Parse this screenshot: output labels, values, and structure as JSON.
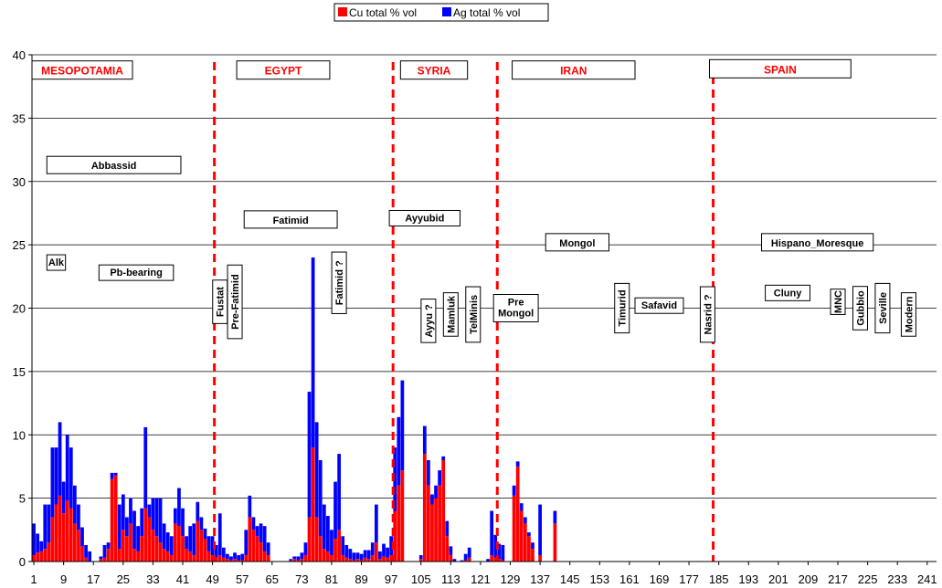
{
  "chart_data": {
    "type": "bar",
    "stacked": true,
    "title": "",
    "xlabel": "",
    "ylabel": "",
    "ylim": [
      0,
      40
    ],
    "yticks": [
      "0",
      "5",
      "10",
      "15",
      "20",
      "25",
      "30",
      "35",
      "40"
    ],
    "x_count": 243,
    "xticks": [
      "1",
      "9",
      "17",
      "25",
      "33",
      "41",
      "49",
      "57",
      "65",
      "73",
      "81",
      "89",
      "97",
      "105",
      "113",
      "121",
      "129",
      "137",
      "145",
      "153",
      "161",
      "169",
      "177",
      "185",
      "193",
      "201",
      "209",
      "217",
      "225",
      "233",
      "241"
    ],
    "grid": "horizontal",
    "legend_position": "top-center",
    "colors": {
      "cu": "#ff0000",
      "ag": "#0000ff",
      "divider": "#ff0000"
    },
    "series": [
      {
        "name": "Cu total % vol",
        "values": [
          0.5,
          0.7,
          0.8,
          1,
          1.5,
          3.5,
          4.5,
          5.2,
          3.8,
          4.8,
          4.2,
          3,
          2.5,
          1.2,
          0.3,
          0,
          0,
          0,
          0.2,
          0.3,
          1,
          6.5,
          6.8,
          1,
          2.5,
          2,
          3,
          1,
          0.8,
          2,
          4.2,
          3.5,
          2.5,
          2,
          1.5,
          1,
          0.8,
          0.5,
          3,
          2.8,
          2,
          1,
          0.8,
          0.5,
          3.2,
          2.5,
          1.8,
          0.8,
          0.5,
          0.3,
          0.5,
          0.3,
          0.2,
          0.1,
          0.2,
          0.1,
          0.1,
          0.5,
          3.5,
          2.5,
          2,
          1.5,
          0.8,
          0.5,
          0,
          0,
          0,
          0,
          0,
          0.1,
          0.2,
          0.1,
          0.2,
          0.5,
          3.5,
          9,
          3.5,
          2,
          1,
          0.8,
          0.5,
          1.8,
          2.5,
          0.5,
          0.3,
          0.2,
          0.1,
          0.2,
          0.1,
          0.3,
          0.2,
          0.5,
          1.5,
          0.2,
          0.4,
          0.3,
          0.5,
          4,
          6,
          7.2,
          0,
          0,
          0,
          0,
          0.2,
          8.5,
          6,
          4.5,
          5,
          6,
          8,
          2,
          0.5,
          0,
          0,
          0,
          0.1,
          0.3,
          0,
          0,
          0,
          0,
          0,
          0.5,
          0.3,
          0.2,
          0.1,
          0,
          0,
          5.2,
          7.5,
          4,
          3,
          2,
          1,
          0,
          0.5,
          0,
          0,
          0,
          3,
          0,
          0,
          0,
          0,
          0,
          0,
          0,
          0,
          0,
          0,
          0,
          0,
          0,
          0,
          0,
          0,
          0,
          0,
          0,
          0,
          0,
          0,
          0,
          0,
          0,
          0,
          0,
          0,
          0,
          0,
          0,
          0,
          0,
          0,
          0,
          0,
          0,
          0,
          0,
          0,
          0,
          0,
          0,
          0,
          0,
          0,
          0,
          0,
          0,
          0,
          0,
          0,
          0,
          0,
          0,
          0,
          0,
          0,
          0,
          0,
          0,
          0,
          0,
          0,
          0,
          0,
          0,
          0,
          0,
          0,
          0,
          0,
          0,
          0,
          0,
          0,
          0,
          0,
          0,
          0,
          0,
          0,
          0,
          0,
          0,
          0,
          0,
          0,
          0,
          0,
          0,
          0,
          0,
          0,
          0,
          0,
          0,
          0,
          0,
          0,
          0,
          0,
          0,
          0,
          0,
          0,
          0
        ]
      },
      {
        "name": "Ag total % vol",
        "values": [
          2.5,
          1.5,
          0.8,
          3.5,
          3,
          5.5,
          4.5,
          5.8,
          2.5,
          5.2,
          4.8,
          3,
          2,
          1.5,
          1,
          0.8,
          0,
          0,
          0.2,
          1,
          0.5,
          0.5,
          0.2,
          3.5,
          2.8,
          1.5,
          2,
          3,
          2,
          2.2,
          6.4,
          1,
          2.5,
          3,
          3.5,
          2,
          1.5,
          1.5,
          1.2,
          3,
          2.2,
          1,
          2,
          2.5,
          1.5,
          1,
          0.8,
          1.2,
          1.5,
          1,
          3.3,
          0.8,
          0.4,
          0.3,
          0.5,
          0.4,
          0.5,
          2,
          1.7,
          1,
          0.8,
          1.5,
          2,
          1,
          0,
          0,
          0,
          0,
          0,
          0.1,
          0.2,
          0.3,
          0.5,
          1,
          9.9,
          15,
          7.5,
          6,
          3.5,
          2.8,
          2,
          4.5,
          6,
          1.5,
          1,
          0.8,
          0.6,
          0.5,
          0.5,
          0.6,
          0.7,
          1,
          3,
          0.6,
          1,
          0.8,
          1.5,
          5,
          5.4,
          7.1,
          0,
          0,
          0,
          0,
          0.3,
          2.2,
          2,
          0.8,
          1,
          1.2,
          0.3,
          1.2,
          0.7,
          0.2,
          0,
          0.1,
          0.5,
          0.8,
          0,
          0,
          0,
          0,
          0.2,
          3.5,
          1.8,
          1.2,
          1.2,
          0,
          0,
          0.8,
          0.4,
          0.6,
          0.5,
          0.3,
          0.5,
          0,
          4,
          0,
          0,
          0,
          1,
          0,
          0,
          0,
          0,
          0,
          0,
          0,
          0,
          0,
          0,
          0,
          0,
          0,
          0,
          0,
          0,
          0,
          0,
          0,
          0,
          0,
          0,
          0,
          0,
          0,
          0,
          0,
          0,
          0,
          0,
          0,
          0,
          0,
          0,
          0,
          0,
          0,
          0,
          0,
          0,
          0,
          0,
          0,
          0,
          0,
          0,
          0,
          0,
          0,
          0,
          0,
          0,
          0,
          0,
          0,
          0,
          0,
          0,
          0,
          0,
          0,
          0,
          0,
          0,
          0,
          0,
          0,
          0,
          0,
          0,
          0,
          0,
          0,
          0,
          0,
          0,
          0,
          0,
          0,
          0,
          0,
          0,
          0,
          0,
          0,
          0,
          0,
          0,
          0,
          0,
          0,
          0,
          0,
          0,
          0,
          0,
          0,
          0,
          0,
          0,
          0,
          0,
          0,
          0,
          0,
          0,
          0,
          0
        ]
      }
    ],
    "dividers_after": [
      49,
      97,
      125,
      183
    ],
    "regions": [
      {
        "label": "MESOPOTAMIA",
        "from": 1,
        "to": 27,
        "y": 39.3
      },
      {
        "label": "EGYPT",
        "from": 56,
        "to": 80,
        "y": 39.3
      },
      {
        "label": "SYRIA",
        "from": 100,
        "to": 117,
        "y": 39.3
      },
      {
        "label": "IRAN",
        "from": 130,
        "to": 162,
        "y": 39.3
      },
      {
        "label": "SPAIN",
        "from": 183,
        "to": 220,
        "y": 39.4
      }
    ],
    "annotations": [
      {
        "text": "Abbassid",
        "from": 5,
        "to": 40,
        "y": 31.3
      },
      {
        "text": "Fatimid",
        "from": 58,
        "to": 82,
        "y": 27
      },
      {
        "text": "Ayyubid",
        "from": 97,
        "to": 115,
        "y": 27.1
      },
      {
        "text": "Mongol",
        "from": 139,
        "to": 155,
        "y": 25.2
      },
      {
        "text": "Hispano_Moresque",
        "from": 197,
        "to": 226,
        "y": 25.2
      },
      {
        "text": "Alk",
        "from": 5,
        "to": 9,
        "y": 23.6
      },
      {
        "text": "Pb-bearing",
        "from": 19,
        "to": 38,
        "y": 22.8
      },
      {
        "text": "Pre\nMongol",
        "from": 125,
        "to": 136,
        "y": 20
      },
      {
        "text": "Cluny",
        "from": 198,
        "to": 209,
        "y": 21.2
      },
      {
        "text": "Safavid",
        "from": 163,
        "to": 175,
        "y": 20.2
      }
    ],
    "vertical_annotations": [
      {
        "text": "Fustat",
        "x": 51,
        "y": 20.5
      },
      {
        "text": "Pre-Fatimid",
        "x": 55,
        "y": 20.5
      },
      {
        "text": "Fatimid ?",
        "x": 83,
        "y": 22
      },
      {
        "text": "Ayyu ?",
        "x": 107,
        "y": 19
      },
      {
        "text": "Mamluk",
        "x": 113,
        "y": 19.5
      },
      {
        "text": "TelMinis",
        "x": 119,
        "y": 19.5
      },
      {
        "text": "Timurid",
        "x": 159,
        "y": 20
      },
      {
        "text": "Nasrid ?",
        "x": 182,
        "y": 19.5
      },
      {
        "text": "MNC",
        "x": 217,
        "y": 20.5
      },
      {
        "text": "Gubbio",
        "x": 223,
        "y": 20
      },
      {
        "text": "Seville",
        "x": 229,
        "y": 20
      },
      {
        "text": "Modern",
        "x": 236,
        "y": 19.5
      }
    ]
  }
}
